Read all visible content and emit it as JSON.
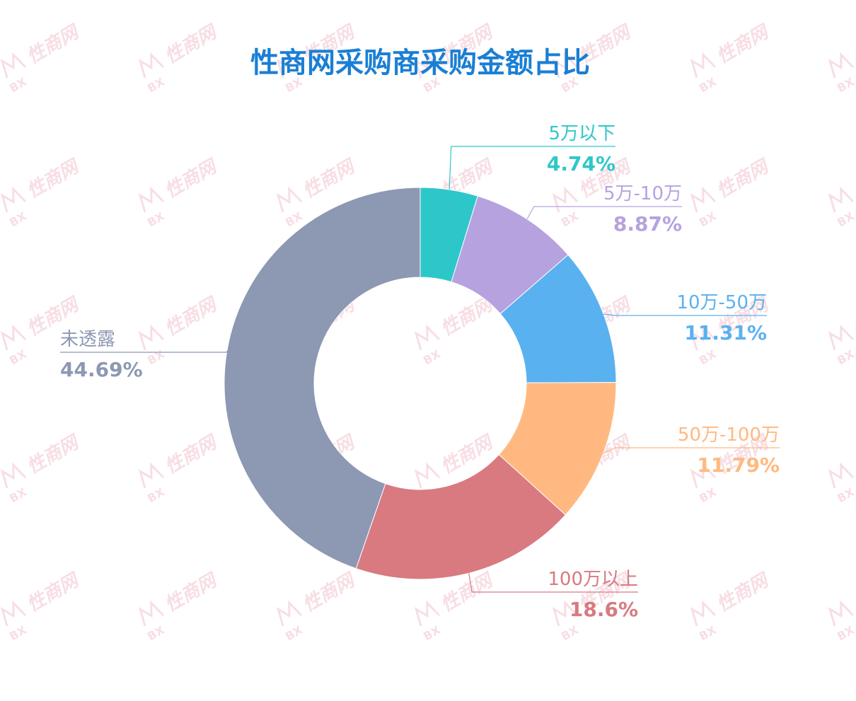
{
  "chart_data": {
    "type": "pie",
    "variant": "donut",
    "title": "性商网采购商采购金额占比",
    "slices": [
      {
        "label": "5万以下",
        "value_text": "4.74%",
        "value": 4.74,
        "color": "#2ec7c9"
      },
      {
        "label": "5万-10万",
        "value_text": "8.87%",
        "value": 8.87,
        "color": "#b6a2de"
      },
      {
        "label": "10万-50万",
        "value_text": "11.31%",
        "value": 11.31,
        "color": "#5ab1ef"
      },
      {
        "label": "50万-100万",
        "value_text": "11.79%",
        "value": 11.79,
        "color": "#ffb980"
      },
      {
        "label": "100万以上",
        "value_text": "18.6%",
        "value": 18.6,
        "color": "#d87a80"
      },
      {
        "label": "未透露",
        "value_text": "44.69%",
        "value": 44.69,
        "color": "#8d98b3"
      }
    ],
    "legend": "none"
  },
  "colors": {
    "title": "#1a7fd4",
    "background": "#ffffff",
    "watermark": "#f2c4cf"
  },
  "watermark": {
    "text": "性商网",
    "subtext": "BX"
  }
}
